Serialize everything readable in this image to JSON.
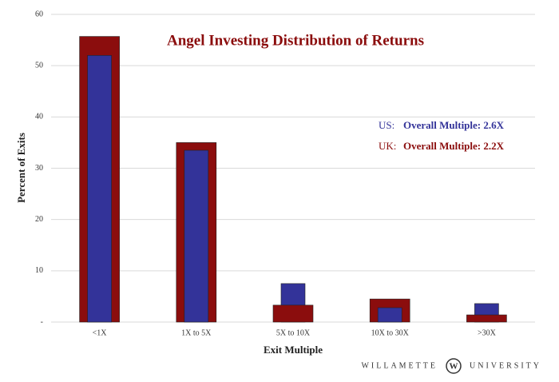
{
  "chart_data": {
    "type": "bar",
    "title": "Angel Investing Distribution of Returns",
    "x_label": "Exit Multiple",
    "y_label": "Percent of Exits",
    "categories": [
      "<1X",
      "1X to 5X",
      "5X to 10X",
      "10X to 30X",
      ">30X"
    ],
    "series": [
      {
        "name": "UK:",
        "color": "#8b0d0d",
        "values": [
          55.7,
          35,
          3.3,
          4.5,
          1.4
        ],
        "note": "Overall Multiple: 2.2X"
      },
      {
        "name": "US:",
        "color": "#333399",
        "values": [
          52,
          33.5,
          7.5,
          2.8,
          3.6
        ],
        "note": "Overall Multiple: 2.6X"
      }
    ],
    "ylim": [
      0,
      60
    ],
    "yticks": [
      {
        "value": 0,
        "label": "-"
      },
      10,
      20,
      30,
      40,
      50,
      60
    ],
    "grid": true
  },
  "footer": {
    "left": "WILLAMETTE",
    "emblem": "W",
    "right": "UNIVERSITY"
  }
}
